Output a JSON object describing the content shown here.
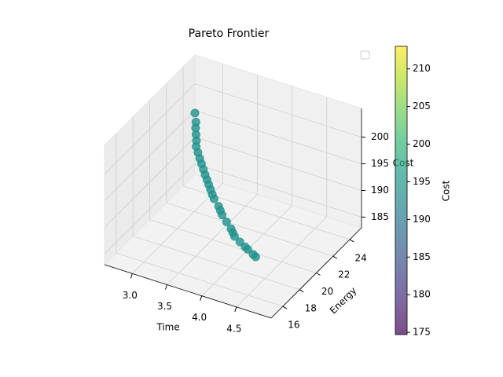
{
  "chart_data": {
    "type": "scatter3d",
    "title": "Pareto Frontier",
    "xlabel": "Time",
    "ylabel": "Energy",
    "zlabel": "Cost",
    "x": [
      2.95,
      3.0,
      3.02,
      3.05,
      3.08,
      3.1,
      3.15,
      3.2,
      3.25,
      3.3,
      3.35,
      3.4,
      3.45,
      3.5,
      3.55,
      3.6,
      3.7,
      3.75,
      3.8,
      3.9,
      4.0,
      4.05,
      4.1,
      4.2,
      4.3,
      4.35,
      4.45,
      4.5
    ],
    "y": [
      22.5,
      22.2,
      22.0,
      21.8,
      21.6,
      21.4,
      21.2,
      21.0,
      20.8,
      20.6,
      20.4,
      20.2,
      20.0,
      19.8,
      19.6,
      19.4,
      19.1,
      18.9,
      18.7,
      18.4,
      18.1,
      17.9,
      17.7,
      17.5,
      17.3,
      17.2,
      17.0,
      16.9
    ],
    "z": [
      200.5,
      199.5,
      198.8,
      198,
      197.3,
      196.6,
      196,
      195.4,
      194.9,
      194.4,
      193.9,
      193.5,
      193.1,
      192.7,
      192.3,
      192,
      191.5,
      191.2,
      190.9,
      190.5,
      190.1,
      189.9,
      189.7,
      189.4,
      189.2,
      189.1,
      188.9,
      188.8
    ],
    "color": "#21918c",
    "xlim": [
      2.6,
      5.0
    ],
    "ylim": [
      14.6,
      25.4
    ],
    "zlim": [
      183,
      205.4
    ],
    "xticks": [
      {
        "value": 3,
        "label": "3.0"
      },
      3.5,
      {
        "value": 4,
        "label": "4.0"
      },
      4.5
    ],
    "yticks": [
      16,
      18,
      20,
      22,
      24
    ],
    "zticks": [
      185,
      190,
      195,
      200
    ],
    "grid": true,
    "colorbar": {
      "label": "Cost",
      "colormap": "viridis",
      "lim": [
        174.7,
        213.0
      ],
      "ticks": [
        175,
        180,
        185,
        190,
        195,
        200,
        205,
        210
      ]
    }
  }
}
